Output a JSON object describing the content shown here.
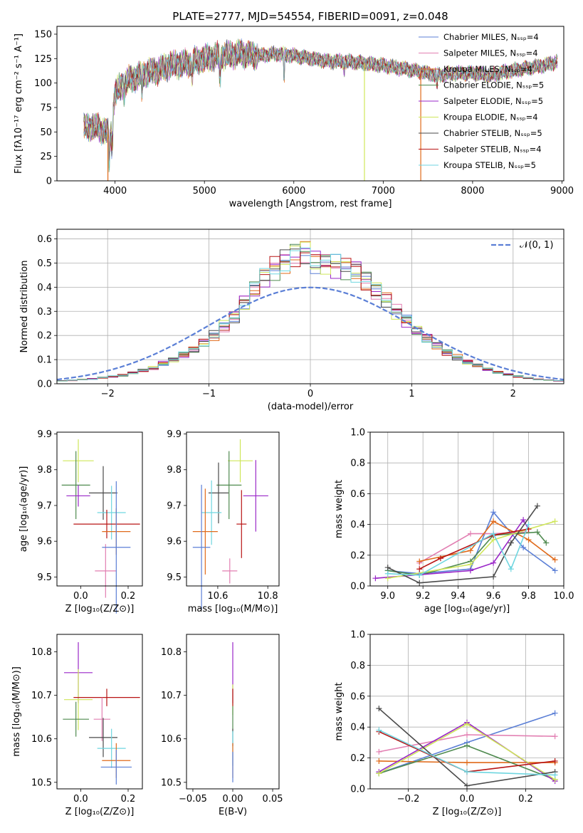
{
  "colors": {
    "Chabrier MILES": "#5b7fd6",
    "Salpeter MILES": "#e27fb2",
    "Kroupa MILES": "#e06a1a",
    "Chabrier ELODIE": "#4f8a4f",
    "Salpeter ELODIE": "#9a27c8",
    "Kroupa ELODIE": "#cfe65a",
    "Chabrier STELIB": "#4a4a4a",
    "Salpeter STELIB": "#b81414",
    "Kroupa STELIB": "#6fd6e0",
    "normal": "#5b7fd6"
  },
  "chart_data": [
    {
      "id": "spectrum",
      "type": "line",
      "title": "PLATE=2777, MJD=54554, FIBERID=0091, z=0.048",
      "xlabel": "wavelength [Angstrom, rest frame]",
      "ylabel": "Flux [fλ10⁻¹⁷ erg cm⁻² s⁻¹ A⁻¹]",
      "xlim": [
        3350,
        9020
      ],
      "ylim": [
        0,
        158
      ],
      "xticks": [
        "4000",
        "5000",
        "6000",
        "7000",
        "8000",
        "9000"
      ],
      "yticks": [
        "0",
        "25",
        "50",
        "75",
        "100",
        "125",
        "150"
      ],
      "legend_loc": "upper right",
      "legend": [
        "Chabrier MILES, Nₛₛₚ=4",
        "Salpeter MILES, Nₛₛₚ=4",
        "Kroupa MILES, Nₛₛₚ=4",
        "Chabrier ELODIE, Nₛₛₚ=5",
        "Salpeter ELODIE, Nₛₛₚ=5",
        "Kroupa ELODIE, Nₛₛₚ=4",
        "Chabrier STELIB, Nₛₛₚ=5",
        "Salpeter STELIB, Nₛₛₚ=4",
        "Kroupa STELIB, Nₛₛₚ=5"
      ],
      "continuum": {
        "x": [
          3650,
          3800,
          3900,
          3950,
          4000,
          4100,
          4200,
          4300,
          4400,
          4500,
          4600,
          4800,
          5000,
          5200,
          5400,
          5600,
          5800,
          6000,
          6200,
          6400,
          6600,
          6800,
          7000,
          7200,
          7400,
          7600,
          7800,
          8000,
          8200,
          8400,
          8600,
          8800,
          8950
        ],
        "y": [
          55,
          55,
          50,
          45,
          90,
          100,
          105,
          108,
          112,
          113,
          118,
          120,
          125,
          128,
          130,
          128,
          130,
          128,
          125,
          122,
          122,
          120,
          118,
          115,
          112,
          108,
          110,
          110,
          108,
          112,
          115,
          118,
          122
        ]
      },
      "spikes": [
        {
          "x": 3920,
          "y": 0,
          "series": "Kroupa MILES"
        },
        {
          "x": 6790,
          "y": 0,
          "series": "Kroupa ELODIE"
        },
        {
          "x": 7420,
          "y": 0,
          "series": "Kroupa MILES"
        }
      ]
    },
    {
      "id": "residual-hist",
      "type": "step",
      "xlabel": "(data-model)/error",
      "ylabel": "Normed distribution",
      "xlim": [
        -2.5,
        2.5
      ],
      "ylim": [
        0,
        0.64
      ],
      "xticks": [
        "−2",
        "−1",
        "0",
        "1",
        "2"
      ],
      "yticks": [
        "0.0",
        "0.1",
        "0.2",
        "0.3",
        "0.4",
        "0.5",
        "0.6"
      ],
      "legend": [
        "𝒩(0, 1)"
      ],
      "grid": true,
      "bin_width": 0.1,
      "bin_start": -2.5,
      "mean_hist": [
        0.012,
        0.014,
        0.018,
        0.02,
        0.025,
        0.03,
        0.035,
        0.045,
        0.055,
        0.065,
        0.085,
        0.1,
        0.12,
        0.14,
        0.17,
        0.2,
        0.24,
        0.28,
        0.34,
        0.39,
        0.44,
        0.48,
        0.51,
        0.54,
        0.55,
        0.51,
        0.5,
        0.49,
        0.48,
        0.47,
        0.43,
        0.39,
        0.35,
        0.3,
        0.26,
        0.22,
        0.19,
        0.16,
        0.13,
        0.11,
        0.09,
        0.075,
        0.06,
        0.048,
        0.038,
        0.03,
        0.024,
        0.018,
        0.015,
        0.012
      ],
      "normal_curve": {
        "mu": 0,
        "sigma": 1
      }
    },
    {
      "id": "age-vs-Z",
      "type": "errorbar",
      "xlabel": "Z [log₁₀(Z/Z⊙)]",
      "ylabel": "age  [log₁₀(age/yr)]",
      "xlim": [
        -0.1,
        0.26
      ],
      "ylim": [
        9.475,
        9.905
      ],
      "xticks": [
        "0.0",
        "0.2"
      ],
      "yticks": [
        "9.5",
        "9.6",
        "9.7",
        "9.8",
        "9.9"
      ],
      "points": [
        {
          "series": "Kroupa ELODIE",
          "x": -0.01,
          "y": 9.825,
          "xerr": 0.065,
          "yerr": 0.06
        },
        {
          "series": "Chabrier ELODIE",
          "x": -0.02,
          "y": 9.757,
          "xerr": 0.06,
          "yerr": 0.095
        },
        {
          "series": "Salpeter ELODIE",
          "x": -0.01,
          "y": 9.727,
          "xerr": 0.05,
          "yerr": 0.03
        },
        {
          "series": "Chabrier STELIB",
          "x": 0.095,
          "y": 9.735,
          "xerr": 0.06,
          "yerr": 0.075
        },
        {
          "series": "Kroupa STELIB",
          "x": 0.13,
          "y": 9.68,
          "xerr": 0.06,
          "yerr": 0.075
        },
        {
          "series": "Salpeter STELIB",
          "x": 0.11,
          "y": 9.648,
          "xerr": 0.14,
          "yerr": 0.04
        },
        {
          "series": "Kroupa MILES",
          "x": 0.15,
          "y": 9.627,
          "xerr": 0.06,
          "yerr": 0.065
        },
        {
          "series": "Salpeter MILES",
          "x": 0.105,
          "y": 9.517,
          "xerr": 0.045,
          "yerr": 0.075
        },
        {
          "series": "Chabrier MILES",
          "x": 0.15,
          "y": 9.583,
          "xerr": 0.06,
          "yerr": 0.185
        }
      ]
    },
    {
      "id": "age-vs-mass",
      "type": "errorbar",
      "xlabel": "mass [log₁₀(M/M⊙)]",
      "ylabel": "",
      "xlim": [
        10.475,
        10.845
      ],
      "ylim": [
        9.475,
        9.905
      ],
      "xticks": [
        "10.6",
        "10.8"
      ],
      "yticks": [
        "9.5",
        "9.6",
        "9.7",
        "9.8",
        "9.9"
      ],
      "points": [
        {
          "series": "Kroupa ELODIE",
          "x": 10.69,
          "y": 9.825,
          "xerr": 0.05,
          "yerr": 0.06
        },
        {
          "series": "Chabrier ELODIE",
          "x": 10.645,
          "y": 9.757,
          "xerr": 0.05,
          "yerr": 0.095
        },
        {
          "series": "Salpeter ELODIE",
          "x": 10.752,
          "y": 9.727,
          "xerr": 0.05,
          "yerr": 0.1
        },
        {
          "series": "Chabrier STELIB",
          "x": 10.603,
          "y": 9.735,
          "xerr": 0.04,
          "yerr": 0.085
        },
        {
          "series": "Kroupa STELIB",
          "x": 10.575,
          "y": 9.68,
          "xerr": 0.04,
          "yerr": 0.09
        },
        {
          "series": "Salpeter STELIB",
          "x": 10.695,
          "y": 9.648,
          "xerr": 0.02,
          "yerr": 0.095
        },
        {
          "series": "Kroupa MILES",
          "x": 10.55,
          "y": 9.627,
          "xerr": 0.05,
          "yerr": 0.12
        },
        {
          "series": "Salpeter MILES",
          "x": 10.648,
          "y": 9.517,
          "xerr": 0.03,
          "yerr": 0.035
        },
        {
          "series": "Chabrier MILES",
          "x": 10.535,
          "y": 9.583,
          "xerr": 0.035,
          "yerr": 0.175
        }
      ]
    },
    {
      "id": "mass-weight-vs-age",
      "type": "line",
      "xlabel": "age  [log₁₀(age/yr)]",
      "ylabel": "mass weight",
      "xlim": [
        8.9,
        10.0
      ],
      "ylim": [
        0,
        1.0
      ],
      "xticks": [
        "9.0",
        "9.2",
        "9.4",
        "9.6",
        "9.8",
        "10.0"
      ],
      "yticks": [
        "0.0",
        "0.2",
        "0.4",
        "0.6",
        "0.8",
        "1.0"
      ],
      "grid": true,
      "series": [
        {
          "name": "Chabrier MILES",
          "x": [
            9.0,
            9.18,
            9.47,
            9.6,
            9.77,
            9.95
          ],
          "y": [
            0.1,
            0.08,
            0.11,
            0.48,
            0.25,
            0.1
          ]
        },
        {
          "name": "Salpeter MILES",
          "x": [
            9.18,
            9.47,
            9.6,
            9.78
          ],
          "y": [
            0.15,
            0.34,
            0.34,
            0.35
          ]
        },
        {
          "name": "Kroupa MILES",
          "x": [
            9.18,
            9.47,
            9.6,
            9.8,
            9.95
          ],
          "y": [
            0.16,
            0.23,
            0.42,
            0.3,
            0.17
          ]
        },
        {
          "name": "Chabrier ELODIE",
          "x": [
            9.0,
            9.18,
            9.47,
            9.6,
            9.85,
            9.9
          ],
          "y": [
            0.1,
            0.07,
            0.16,
            0.33,
            0.35,
            0.28
          ]
        },
        {
          "name": "Salpeter ELODIE",
          "x": [
            8.93,
            9.47,
            9.6,
            9.77,
            9.8
          ],
          "y": [
            0.05,
            0.1,
            0.15,
            0.43,
            0.37
          ]
        },
        {
          "name": "Kroupa ELODIE",
          "x": [
            9.0,
            9.47,
            9.6,
            9.8,
            9.95
          ],
          "y": [
            0.05,
            0.14,
            0.3,
            0.37,
            0.42
          ]
        },
        {
          "name": "Chabrier STELIB",
          "x": [
            9.0,
            9.18,
            9.6,
            9.7,
            9.85
          ],
          "y": [
            0.12,
            0.02,
            0.06,
            0.28,
            0.52
          ]
        },
        {
          "name": "Salpeter STELIB",
          "x": [
            9.18,
            9.3,
            9.6,
            9.8
          ],
          "y": [
            0.11,
            0.18,
            0.33,
            0.37
          ]
        },
        {
          "name": "Kroupa STELIB",
          "x": [
            9.0,
            9.18,
            9.6,
            9.7,
            9.8
          ],
          "y": [
            0.08,
            0.07,
            0.34,
            0.11,
            0.4
          ]
        }
      ]
    },
    {
      "id": "mass-vs-Z",
      "type": "errorbar",
      "xlabel": "Z [log₁₀(Z/Z⊙)]",
      "ylabel": "mass [log₁₀(M/M⊙)]",
      "xlim": [
        -0.1,
        0.26
      ],
      "ylim": [
        10.485,
        10.84
      ],
      "xticks": [
        "0.0",
        "0.2"
      ],
      "yticks": [
        "10.5",
        "10.6",
        "10.7",
        "10.8"
      ],
      "points": [
        {
          "series": "Salpeter ELODIE",
          "x": -0.01,
          "y": 10.752,
          "xerr": 0.06,
          "yerr": 0.07
        },
        {
          "series": "Kroupa ELODIE",
          "x": -0.01,
          "y": 10.69,
          "xerr": 0.06,
          "yerr": 0.07
        },
        {
          "series": "Salpeter STELIB",
          "x": 0.11,
          "y": 10.695,
          "xerr": 0.14,
          "yerr": 0.02
        },
        {
          "series": "Chabrier ELODIE",
          "x": -0.02,
          "y": 10.645,
          "xerr": 0.055,
          "yerr": 0.04
        },
        {
          "series": "Salpeter MILES",
          "x": 0.09,
          "y": 10.645,
          "xerr": 0.035,
          "yerr": 0.05
        },
        {
          "series": "Chabrier STELIB",
          "x": 0.095,
          "y": 10.603,
          "xerr": 0.06,
          "yerr": 0.045
        },
        {
          "series": "Kroupa STELIB",
          "x": 0.13,
          "y": 10.578,
          "xerr": 0.06,
          "yerr": 0.045
        },
        {
          "series": "Kroupa MILES",
          "x": 0.15,
          "y": 10.55,
          "xerr": 0.06,
          "yerr": 0.04
        },
        {
          "series": "Chabrier MILES",
          "x": 0.15,
          "y": 10.535,
          "xerr": 0.065,
          "yerr": 0.04
        }
      ]
    },
    {
      "id": "mass-vs-ebv",
      "type": "errorbar",
      "xlabel": "E(B-V)",
      "ylabel": "",
      "xlim": [
        -0.058,
        0.058
      ],
      "ylim": [
        10.485,
        10.84
      ],
      "xticks": [
        "−0.05",
        "0.00",
        "0.05"
      ],
      "yticks": [
        "10.5",
        "10.6",
        "10.7",
        "10.8"
      ],
      "points": [
        {
          "series": "Salpeter ELODIE",
          "x": 0,
          "y": 10.752,
          "xerr": 0,
          "yerr": 0.07
        },
        {
          "series": "Kroupa ELODIE",
          "x": 0,
          "y": 10.69,
          "xerr": 0,
          "yerr": 0.035
        },
        {
          "series": "Salpeter STELIB",
          "x": 0,
          "y": 10.695,
          "xerr": 0,
          "yerr": 0.02
        },
        {
          "series": "Chabrier ELODIE",
          "x": 0,
          "y": 10.645,
          "xerr": 0,
          "yerr": 0.03
        },
        {
          "series": "Chabrier STELIB",
          "x": 0,
          "y": 10.603,
          "xerr": 0,
          "yerr": 0.02
        },
        {
          "series": "Kroupa STELIB",
          "x": 0,
          "y": 10.578,
          "xerr": 0,
          "yerr": 0.04
        },
        {
          "series": "Kroupa MILES",
          "x": 0,
          "y": 10.55,
          "xerr": 0,
          "yerr": 0.04
        },
        {
          "series": "Chabrier MILES",
          "x": 0,
          "y": 10.535,
          "xerr": 0,
          "yerr": 0.035
        }
      ]
    },
    {
      "id": "mass-weight-vs-Z",
      "type": "line",
      "xlabel": "Z [log₁₀(Z/Z⊙)]",
      "ylabel": "mass weight",
      "xlim": [
        -0.33,
        0.33
      ],
      "ylim": [
        0,
        1.0
      ],
      "xticks": [
        "−0.2",
        "0.0",
        "0.2"
      ],
      "yticks": [
        "0.0",
        "0.2",
        "0.4",
        "0.6",
        "0.8",
        "1.0"
      ],
      "grid": true,
      "series": [
        {
          "name": "Chabrier MILES",
          "x": [
            -0.3,
            0.0,
            0.3
          ],
          "y": [
            0.1,
            0.3,
            0.49
          ]
        },
        {
          "name": "Salpeter MILES",
          "x": [
            -0.3,
            0.0,
            0.3
          ],
          "y": [
            0.24,
            0.35,
            0.34
          ]
        },
        {
          "name": "Kroupa MILES",
          "x": [
            -0.3,
            0.0,
            0.3
          ],
          "y": [
            0.18,
            0.17,
            0.17
          ]
        },
        {
          "name": "Chabrier ELODIE",
          "x": [
            -0.3,
            0.0,
            0.3
          ],
          "y": [
            0.1,
            0.28,
            0.06
          ]
        },
        {
          "name": "Salpeter ELODIE",
          "x": [
            -0.3,
            0.0,
            0.3
          ],
          "y": [
            0.11,
            0.43,
            0.05
          ]
        },
        {
          "name": "Kroupa ELODIE",
          "x": [
            -0.3,
            0.0,
            0.3
          ],
          "y": [
            0.1,
            0.42,
            0.06
          ]
        },
        {
          "name": "Chabrier STELIB",
          "x": [
            -0.3,
            0.0,
            0.3
          ],
          "y": [
            0.52,
            0.02,
            0.11
          ]
        },
        {
          "name": "Salpeter STELIB",
          "x": [
            -0.3,
            0.0,
            0.3
          ],
          "y": [
            0.37,
            0.11,
            0.18
          ]
        },
        {
          "name": "Kroupa STELIB",
          "x": [
            -0.3,
            0.0,
            0.3
          ],
          "y": [
            0.38,
            0.11,
            0.09
          ]
        }
      ]
    }
  ]
}
